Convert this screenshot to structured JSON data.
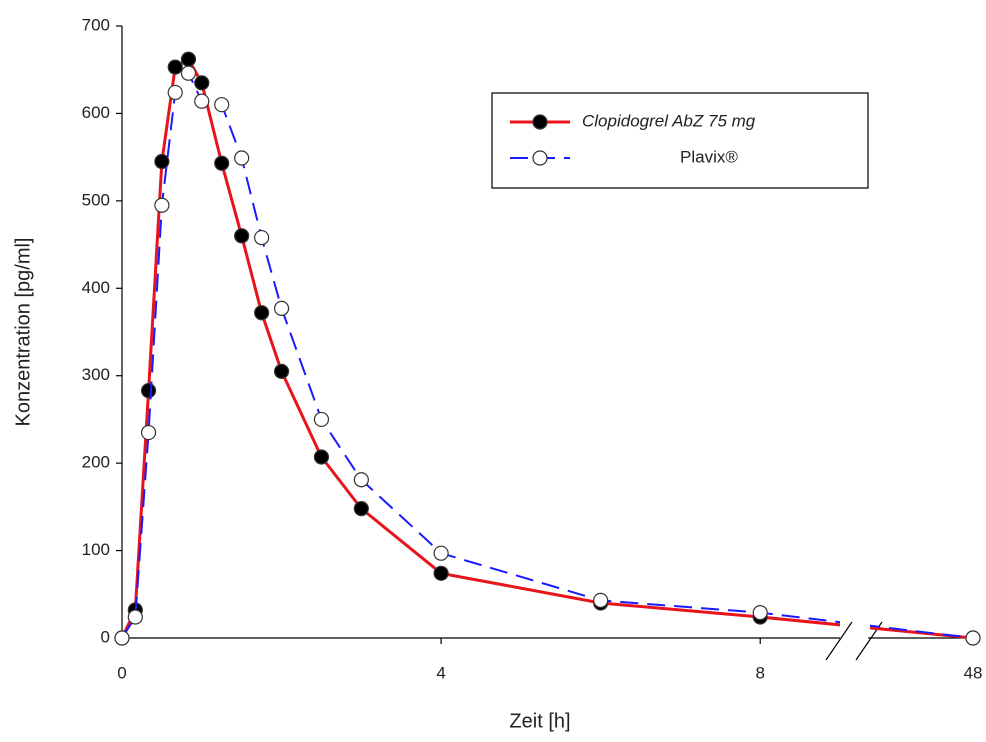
{
  "chart_data": {
    "type": "line",
    "x_label": "Zeit [h]",
    "y_label": "Konzentration [pg/ml]",
    "x": [
      0,
      0.167,
      0.333,
      0.5,
      0.667,
      0.833,
      1,
      1.25,
      1.5,
      1.75,
      2,
      2.5,
      3,
      4,
      6,
      8,
      48
    ],
    "series": [
      {
        "name": "Clopidogrel AbZ 75 mg",
        "color": "#e8141b",
        "marker_fill": "#000000",
        "values": [
          0,
          32,
          283,
          545,
          653,
          662,
          635,
          543,
          460,
          372,
          305,
          207,
          148,
          74,
          40,
          24,
          0
        ]
      },
      {
        "name": "Plavix®",
        "color": "#1a1aff",
        "marker_fill": "#ffffff",
        "dashed": true,
        "values": [
          0,
          24,
          235,
          495,
          624,
          646,
          614,
          610,
          549,
          458,
          377,
          250,
          181,
          97,
          43,
          29,
          0
        ]
      }
    ],
    "xlim": [
      0,
      48
    ],
    "xbreak": [
      9,
      47
    ],
    "xticks": [
      0,
      4,
      8,
      48
    ],
    "ylim": [
      0,
      700
    ],
    "yticks": [
      0,
      100,
      200,
      300,
      400,
      500,
      600,
      700
    ],
    "grid": false,
    "legend": "upper right"
  }
}
